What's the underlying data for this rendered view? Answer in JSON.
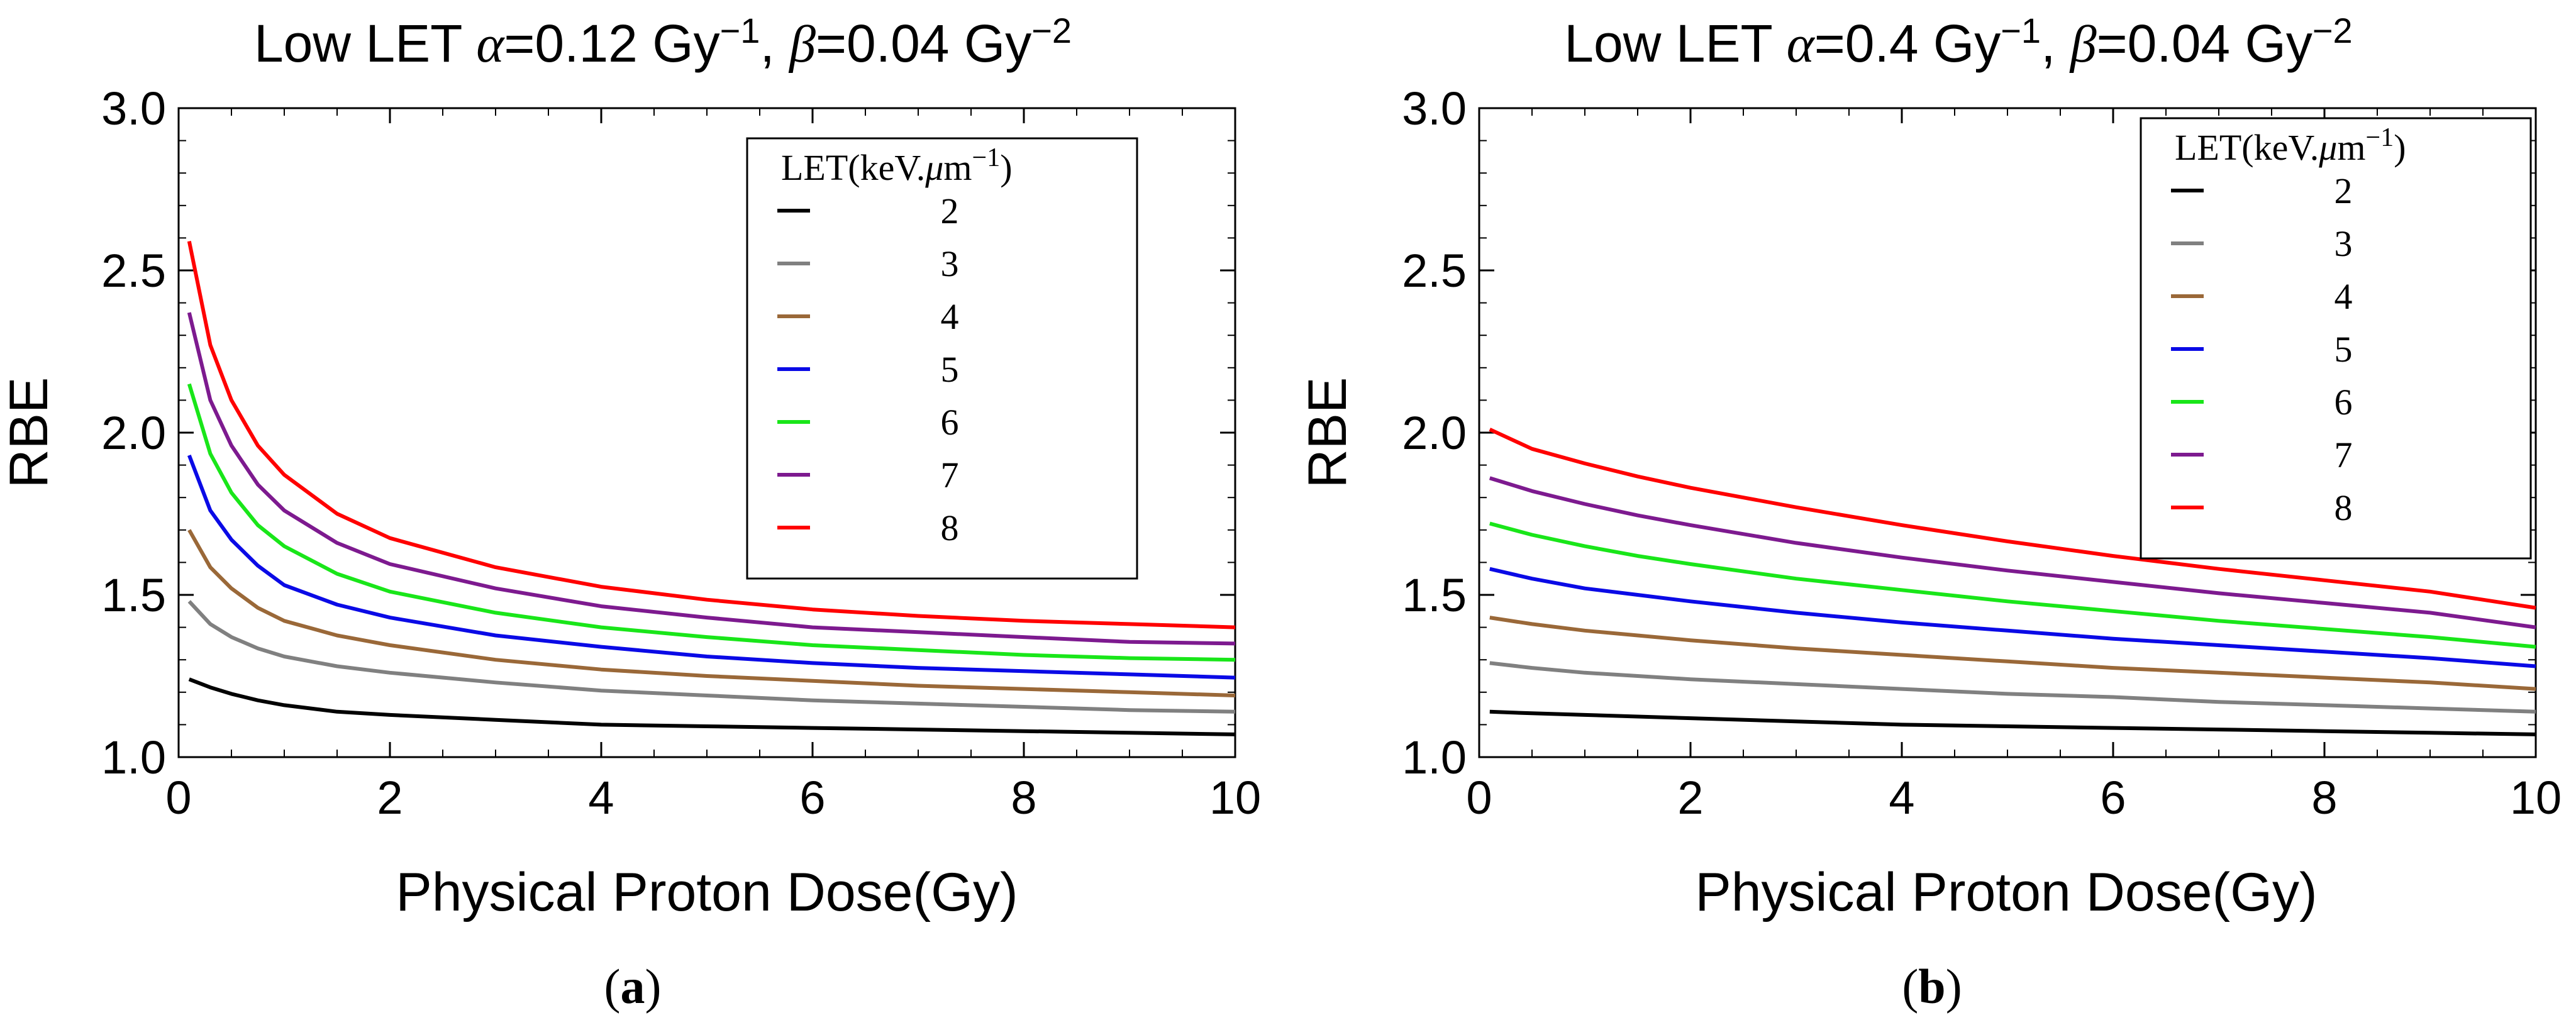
{
  "chart_data": [
    {
      "type": "line",
      "panel": "a",
      "title": {
        "prefix": "Low LET ",
        "alpha_symbol": "α",
        "alpha_eq": "=0.12 Gy",
        "alpha_exp": "−1",
        "sep": ", ",
        "beta_symbol": "β",
        "beta_eq": "=0.04 Gy",
        "beta_exp": "−2"
      },
      "xlabel": "Physical Proton Dose(Gy)",
      "ylabel": "RBE",
      "xlim": [
        0,
        10
      ],
      "ylim": [
        1.0,
        3.0
      ],
      "xticks": [
        0,
        2,
        4,
        6,
        8,
        10
      ],
      "xtick_labels": [
        "0",
        "2",
        "4",
        "6",
        "8",
        "10"
      ],
      "yticks": [
        1.0,
        1.5,
        2.0,
        2.5,
        3.0
      ],
      "ytick_labels": [
        "1.0",
        "1.5",
        "2.0",
        "2.5",
        "3.0"
      ],
      "legend_title": {
        "prefix": "LET(keV.",
        "mu_symbol": "μ",
        "unit": "m",
        "exp": "−1",
        "suffix": ")"
      },
      "legend_position": "top-right",
      "x": [
        0.1,
        0.3,
        0.5,
        0.75,
        1.0,
        1.5,
        2.0,
        3.0,
        4.0,
        5.0,
        6.0,
        7.0,
        8.0,
        9.0,
        10.0
      ],
      "series": [
        {
          "name": "2",
          "color": "#000000",
          "values": [
            1.24,
            1.215,
            1.195,
            1.175,
            1.16,
            1.14,
            1.13,
            1.115,
            1.1,
            1.095,
            1.09,
            1.085,
            1.08,
            1.075,
            1.07
          ]
        },
        {
          "name": "3",
          "color": "#808080",
          "values": [
            1.48,
            1.41,
            1.37,
            1.335,
            1.31,
            1.28,
            1.26,
            1.23,
            1.205,
            1.19,
            1.175,
            1.165,
            1.155,
            1.145,
            1.14
          ]
        },
        {
          "name": "4",
          "color": "#9a6838",
          "values": [
            1.7,
            1.585,
            1.52,
            1.46,
            1.42,
            1.375,
            1.345,
            1.3,
            1.27,
            1.25,
            1.235,
            1.22,
            1.21,
            1.2,
            1.19
          ]
        },
        {
          "name": "5",
          "color": "#0a0ae6",
          "values": [
            1.93,
            1.76,
            1.67,
            1.59,
            1.53,
            1.47,
            1.43,
            1.375,
            1.34,
            1.31,
            1.29,
            1.275,
            1.265,
            1.255,
            1.245
          ]
        },
        {
          "name": "6",
          "color": "#19e619",
          "values": [
            2.15,
            1.935,
            1.815,
            1.715,
            1.65,
            1.565,
            1.51,
            1.445,
            1.4,
            1.37,
            1.345,
            1.33,
            1.315,
            1.305,
            1.3
          ]
        },
        {
          "name": "7",
          "color": "#7d1a8f",
          "values": [
            2.37,
            2.1,
            1.96,
            1.84,
            1.76,
            1.66,
            1.595,
            1.52,
            1.465,
            1.43,
            1.4,
            1.385,
            1.37,
            1.355,
            1.35
          ]
        },
        {
          "name": "8",
          "color": "#ff0000",
          "values": [
            2.59,
            2.27,
            2.1,
            1.96,
            1.87,
            1.75,
            1.675,
            1.585,
            1.525,
            1.485,
            1.455,
            1.435,
            1.42,
            1.41,
            1.4
          ]
        }
      ],
      "panel_label": {
        "open": "(",
        "letter": "a",
        "close": ")"
      }
    },
    {
      "type": "line",
      "panel": "b",
      "title": {
        "prefix": "Low LET ",
        "alpha_symbol": "α",
        "alpha_eq": "=0.4 Gy",
        "alpha_exp": "−1",
        "sep": ", ",
        "beta_symbol": "β",
        "beta_eq": "=0.04 Gy",
        "beta_exp": "−2"
      },
      "xlabel": "Physical Proton Dose(Gy)",
      "ylabel": "RBE",
      "xlim": [
        0,
        10
      ],
      "ylim": [
        1.0,
        3.0
      ],
      "xticks": [
        0,
        2,
        4,
        6,
        8,
        10
      ],
      "xtick_labels": [
        "0",
        "2",
        "4",
        "6",
        "8",
        "10"
      ],
      "yticks": [
        1.0,
        1.5,
        2.0,
        2.5,
        3.0
      ],
      "ytick_labels": [
        "1.0",
        "1.5",
        "2.0",
        "2.5",
        "3.0"
      ],
      "legend_title": {
        "prefix": "LET(keV.",
        "mu_symbol": "μ",
        "unit": "m",
        "exp": "−1",
        "suffix": ")"
      },
      "legend_position": "top-right",
      "x": [
        0.1,
        0.5,
        1.0,
        1.5,
        2.0,
        3.0,
        4.0,
        5.0,
        6.0,
        7.0,
        8.0,
        9.0,
        10.0
      ],
      "series": [
        {
          "name": "2",
          "color": "#000000",
          "values": [
            1.14,
            1.135,
            1.13,
            1.125,
            1.12,
            1.11,
            1.1,
            1.095,
            1.09,
            1.085,
            1.08,
            1.075,
            1.07
          ]
        },
        {
          "name": "3",
          "color": "#808080",
          "values": [
            1.29,
            1.275,
            1.26,
            1.25,
            1.24,
            1.225,
            1.21,
            1.195,
            1.185,
            1.17,
            1.16,
            1.15,
            1.14
          ]
        },
        {
          "name": "4",
          "color": "#9a6838",
          "values": [
            1.43,
            1.41,
            1.39,
            1.375,
            1.36,
            1.335,
            1.315,
            1.295,
            1.275,
            1.26,
            1.245,
            1.23,
            1.21
          ]
        },
        {
          "name": "5",
          "color": "#0a0ae6",
          "values": [
            1.58,
            1.55,
            1.52,
            1.5,
            1.48,
            1.445,
            1.415,
            1.39,
            1.365,
            1.345,
            1.325,
            1.305,
            1.28
          ]
        },
        {
          "name": "6",
          "color": "#19e619",
          "values": [
            1.72,
            1.685,
            1.65,
            1.62,
            1.595,
            1.55,
            1.515,
            1.48,
            1.45,
            1.42,
            1.395,
            1.37,
            1.34
          ]
        },
        {
          "name": "7",
          "color": "#7d1a8f",
          "values": [
            1.86,
            1.82,
            1.78,
            1.745,
            1.715,
            1.66,
            1.615,
            1.575,
            1.54,
            1.505,
            1.475,
            1.445,
            1.4
          ]
        },
        {
          "name": "8",
          "color": "#ff0000",
          "values": [
            2.01,
            1.95,
            1.905,
            1.865,
            1.83,
            1.77,
            1.715,
            1.665,
            1.62,
            1.58,
            1.545,
            1.51,
            1.46
          ]
        }
      ],
      "panel_label": {
        "open": "(",
        "letter": "b",
        "close": ")"
      }
    }
  ]
}
